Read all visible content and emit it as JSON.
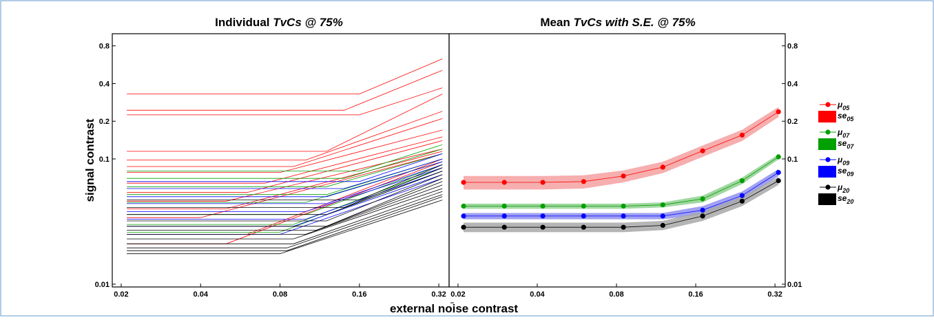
{
  "chart_data": [
    {
      "panel": "left",
      "type": "line",
      "title_plain": "Individual ",
      "title_italic": "TvCs @ 75%",
      "xlabel": "external noise contrast",
      "ylabel": "signal contrast",
      "xscale": "log",
      "yscale": "log",
      "xlim": [
        0.0185,
        0.35
      ],
      "ylim": [
        0.0095,
        1.0
      ],
      "x_ticks": [
        0.02,
        0.04,
        0.08,
        0.16,
        0.32
      ],
      "x_tick_labels": [
        "0.02",
        "0.04",
        "0.08",
        "0.16",
        "0.32"
      ],
      "y_ticks": [
        0.01,
        0.1,
        0.2,
        0.4,
        0.8
      ],
      "y_tick_labels": [
        "0.01",
        "0.1",
        "0.2",
        "0.4",
        "0.8"
      ],
      "series": [
        {
          "color": "#ff0000",
          "x": [
            0.021,
            0.16,
            0.33
          ],
          "y": [
            0.33,
            0.33,
            0.63
          ]
        },
        {
          "color": "#ff0000",
          "x": [
            0.021,
            0.14,
            0.33
          ],
          "y": [
            0.245,
            0.245,
            0.51
          ]
        },
        {
          "color": "#ff0000",
          "x": [
            0.021,
            0.16,
            0.33
          ],
          "y": [
            0.225,
            0.225,
            0.37
          ]
        },
        {
          "color": "#ff0000",
          "x": [
            0.021,
            0.12,
            0.33
          ],
          "y": [
            0.115,
            0.115,
            0.33
          ]
        },
        {
          "color": "#ff0000",
          "x": [
            0.021,
            0.1,
            0.33
          ],
          "y": [
            0.098,
            0.098,
            0.24
          ]
        },
        {
          "color": "#ff0000",
          "x": [
            0.021,
            0.09,
            0.33
          ],
          "y": [
            0.087,
            0.087,
            0.21
          ]
        },
        {
          "color": "#ff0000",
          "x": [
            0.021,
            0.08,
            0.33
          ],
          "y": [
            0.078,
            0.078,
            0.17
          ]
        },
        {
          "color": "#ff0000",
          "x": [
            0.021,
            0.07,
            0.33
          ],
          "y": [
            0.064,
            0.064,
            0.15
          ]
        },
        {
          "color": "#ff0000",
          "x": [
            0.021,
            0.06,
            0.33
          ],
          "y": [
            0.054,
            0.054,
            0.14
          ]
        },
        {
          "color": "#ff0000",
          "x": [
            0.021,
            0.05,
            0.33
          ],
          "y": [
            0.046,
            0.046,
            0.12
          ]
        },
        {
          "color": "#ff0000",
          "x": [
            0.021,
            0.05,
            0.33
          ],
          "y": [
            0.04,
            0.04,
            0.115
          ]
        },
        {
          "color": "#ff0000",
          "x": [
            0.021,
            0.04,
            0.33
          ],
          "y": [
            0.034,
            0.034,
            0.11
          ]
        },
        {
          "color": "#ff0000",
          "x": [
            0.021,
            0.06,
            0.33
          ],
          "y": [
            0.025,
            0.025,
            0.1
          ]
        },
        {
          "color": "#ff0000",
          "x": [
            0.021,
            0.05,
            0.33
          ],
          "y": [
            0.021,
            0.021,
            0.095
          ]
        },
        {
          "color": "#00a000",
          "x": [
            0.021,
            0.16,
            0.33
          ],
          "y": [
            0.08,
            0.08,
            0.13
          ]
        },
        {
          "color": "#00a000",
          "x": [
            0.021,
            0.14,
            0.33
          ],
          "y": [
            0.07,
            0.07,
            0.12
          ]
        },
        {
          "color": "#00a000",
          "x": [
            0.021,
            0.12,
            0.33
          ],
          "y": [
            0.06,
            0.06,
            0.11
          ]
        },
        {
          "color": "#00a000",
          "x": [
            0.021,
            0.12,
            0.33
          ],
          "y": [
            0.052,
            0.052,
            0.1
          ]
        },
        {
          "color": "#00a000",
          "x": [
            0.021,
            0.1,
            0.33
          ],
          "y": [
            0.045,
            0.045,
            0.095
          ]
        },
        {
          "color": "#00a000",
          "x": [
            0.021,
            0.1,
            0.33
          ],
          "y": [
            0.036,
            0.036,
            0.09
          ]
        },
        {
          "color": "#00a000",
          "x": [
            0.021,
            0.09,
            0.33
          ],
          "y": [
            0.03,
            0.03,
            0.085
          ]
        },
        {
          "color": "#00a000",
          "x": [
            0.021,
            0.08,
            0.33
          ],
          "y": [
            0.026,
            0.026,
            0.08
          ]
        },
        {
          "color": "#0000ff",
          "x": [
            0.021,
            0.16,
            0.33
          ],
          "y": [
            0.066,
            0.066,
            0.11
          ]
        },
        {
          "color": "#0000ff",
          "x": [
            0.021,
            0.14,
            0.33
          ],
          "y": [
            0.058,
            0.058,
            0.1
          ]
        },
        {
          "color": "#0000ff",
          "x": [
            0.021,
            0.12,
            0.33
          ],
          "y": [
            0.05,
            0.05,
            0.095
          ]
        },
        {
          "color": "#0000ff",
          "x": [
            0.021,
            0.12,
            0.33
          ],
          "y": [
            0.044,
            0.044,
            0.09
          ]
        },
        {
          "color": "#0000ff",
          "x": [
            0.021,
            0.1,
            0.33
          ],
          "y": [
            0.038,
            0.038,
            0.085
          ]
        },
        {
          "color": "#0000ff",
          "x": [
            0.021,
            0.1,
            0.33
          ],
          "y": [
            0.033,
            0.033,
            0.08
          ]
        },
        {
          "color": "#0000ff",
          "x": [
            0.021,
            0.09,
            0.33
          ],
          "y": [
            0.029,
            0.029,
            0.075
          ]
        },
        {
          "color": "#0000ff",
          "x": [
            0.021,
            0.08,
            0.33
          ],
          "y": [
            0.025,
            0.025,
            0.07
          ]
        },
        {
          "color": "#000000",
          "x": [
            0.021,
            0.16,
            0.33
          ],
          "y": [
            0.047,
            0.047,
            0.09
          ]
        },
        {
          "color": "#000000",
          "x": [
            0.021,
            0.14,
            0.33
          ],
          "y": [
            0.041,
            0.041,
            0.085
          ]
        },
        {
          "color": "#000000",
          "x": [
            0.021,
            0.12,
            0.33
          ],
          "y": [
            0.036,
            0.036,
            0.08
          ]
        },
        {
          "color": "#000000",
          "x": [
            0.021,
            0.12,
            0.33
          ],
          "y": [
            0.032,
            0.032,
            0.075
          ]
        },
        {
          "color": "#000000",
          "x": [
            0.021,
            0.12,
            0.33
          ],
          "y": [
            0.029,
            0.029,
            0.07
          ]
        },
        {
          "color": "#000000",
          "x": [
            0.021,
            0.11,
            0.33
          ],
          "y": [
            0.027,
            0.027,
            0.066
          ]
        },
        {
          "color": "#000000",
          "x": [
            0.021,
            0.1,
            0.33
          ],
          "y": [
            0.025,
            0.025,
            0.062
          ]
        },
        {
          "color": "#000000",
          "x": [
            0.021,
            0.09,
            0.33
          ],
          "y": [
            0.023,
            0.023,
            0.058
          ]
        },
        {
          "color": "#000000",
          "x": [
            0.021,
            0.09,
            0.33
          ],
          "y": [
            0.021,
            0.021,
            0.055
          ]
        },
        {
          "color": "#000000",
          "x": [
            0.021,
            0.085,
            0.33
          ],
          "y": [
            0.0195,
            0.0195,
            0.052
          ]
        },
        {
          "color": "#000000",
          "x": [
            0.021,
            0.085,
            0.33
          ],
          "y": [
            0.0185,
            0.0185,
            0.05
          ]
        },
        {
          "color": "#000000",
          "x": [
            0.021,
            0.08,
            0.33
          ],
          "y": [
            0.0175,
            0.0175,
            0.047
          ]
        }
      ]
    },
    {
      "panel": "right",
      "type": "line",
      "title_plain": "Mean ",
      "title_italic": "TvCs with S.E. @ 75%",
      "xscale": "log",
      "yscale": "log",
      "xlim": [
        0.0185,
        0.35
      ],
      "ylim": [
        0.0095,
        1.0
      ],
      "x_ticks": [
        0.02,
        0.04,
        0.08,
        0.16,
        0.32
      ],
      "x_tick_labels": [
        "0.02",
        "0.04",
        "0.08",
        "0.16",
        "0.32"
      ],
      "y_ticks": [
        0.01,
        0.1,
        0.2,
        0.4,
        0.8
      ],
      "y_tick_labels": [
        "0.01",
        "0.1",
        "0.2",
        "0.4",
        "0.8"
      ],
      "x": [
        0.021,
        0.03,
        0.042,
        0.06,
        0.085,
        0.12,
        0.17,
        0.24,
        0.33
      ],
      "series": [
        {
          "legend_mean": "μ",
          "legend_se": "se",
          "sub": "05",
          "color": "#ff0000",
          "band_color": "#f5a0a0",
          "y": [
            0.065,
            0.065,
            0.065,
            0.066,
            0.073,
            0.086,
            0.116,
            0.155,
            0.238
          ],
          "se": [
            0.008,
            0.008,
            0.008,
            0.008,
            0.008,
            0.009,
            0.012,
            0.016,
            0.022
          ]
        },
        {
          "legend_mean": "μ",
          "legend_se": "se",
          "sub": "07",
          "color": "#00a000",
          "band_color": "#90d090",
          "y": [
            0.042,
            0.042,
            0.042,
            0.042,
            0.042,
            0.043,
            0.048,
            0.067,
            0.104
          ],
          "se": [
            0.002,
            0.002,
            0.002,
            0.002,
            0.002,
            0.002,
            0.003,
            0.004,
            0.005
          ]
        },
        {
          "legend_mean": "μ",
          "legend_se": "se",
          "sub": "09",
          "color": "#0000ff",
          "band_color": "#9090f0",
          "y": [
            0.035,
            0.035,
            0.035,
            0.035,
            0.035,
            0.035,
            0.039,
            0.051,
            0.078
          ],
          "se": [
            0.002,
            0.002,
            0.002,
            0.002,
            0.002,
            0.002,
            0.003,
            0.004,
            0.005
          ]
        },
        {
          "legend_mean": "μ",
          "legend_se": "se",
          "sub": "20",
          "color": "#000000",
          "band_color": "#a8a8a8",
          "y": [
            0.0285,
            0.0285,
            0.0285,
            0.0285,
            0.0285,
            0.0295,
            0.035,
            0.046,
            0.067
          ],
          "se": [
            0.0025,
            0.0025,
            0.0025,
            0.0025,
            0.0025,
            0.0025,
            0.003,
            0.004,
            0.005
          ]
        }
      ]
    }
  ]
}
